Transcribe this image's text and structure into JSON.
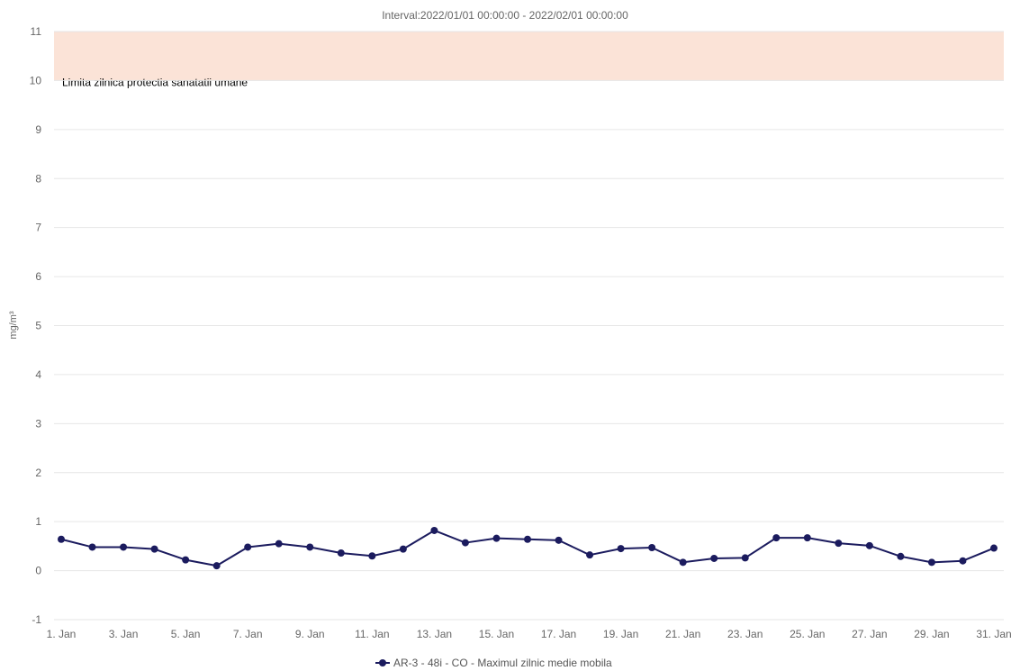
{
  "chart_data": {
    "type": "line",
    "subtitle": "Interval:2022/01/01 00:00:00 - 2022/02/01 00:00:00",
    "ylabel": "mg/m³",
    "ylim": [
      -1,
      11
    ],
    "yticks": [
      "-1",
      "0",
      "1",
      "2",
      "3",
      "4",
      "5",
      "6",
      "7",
      "8",
      "9",
      "10",
      "11"
    ],
    "x_tick_labels": [
      "1. Jan",
      "3. Jan",
      "5. Jan",
      "7. Jan",
      "9. Jan",
      "11. Jan",
      "13. Jan",
      "15. Jan",
      "17. Jan",
      "19. Jan",
      "21. Jan",
      "23. Jan",
      "25. Jan",
      "27. Jan",
      "29. Jan",
      "31. Jan"
    ],
    "x": [
      "2022-01-01",
      "2022-01-02",
      "2022-01-03",
      "2022-01-04",
      "2022-01-05",
      "2022-01-06",
      "2022-01-07",
      "2022-01-08",
      "2022-01-09",
      "2022-01-10",
      "2022-01-11",
      "2022-01-12",
      "2022-01-13",
      "2022-01-14",
      "2022-01-15",
      "2022-01-16",
      "2022-01-17",
      "2022-01-18",
      "2022-01-19",
      "2022-01-20",
      "2022-01-21",
      "2022-01-22",
      "2022-01-23",
      "2022-01-24",
      "2022-01-25",
      "2022-01-26",
      "2022-01-27",
      "2022-01-28",
      "2022-01-29",
      "2022-01-30",
      "2022-01-31"
    ],
    "series": [
      {
        "name": "AR-3 - 48i - CO - Maximul zilnic medie mobila",
        "color": "#1b1b5e",
        "values": [
          0.64,
          0.48,
          0.48,
          0.44,
          0.22,
          0.1,
          0.48,
          0.55,
          0.48,
          0.36,
          0.3,
          0.44,
          0.82,
          0.57,
          0.66,
          0.64,
          0.62,
          0.32,
          0.45,
          0.47,
          0.17,
          0.25,
          0.26,
          0.67,
          0.67,
          0.56,
          0.51,
          0.29,
          0.17,
          0.2,
          0.46
        ]
      }
    ],
    "plot_band": {
      "from": 10,
      "to": 11,
      "label": "Limita zilnica protectia sanatatii umane",
      "color": "#fbe3d7"
    },
    "grid": true,
    "legend_position": "bottom-center"
  }
}
